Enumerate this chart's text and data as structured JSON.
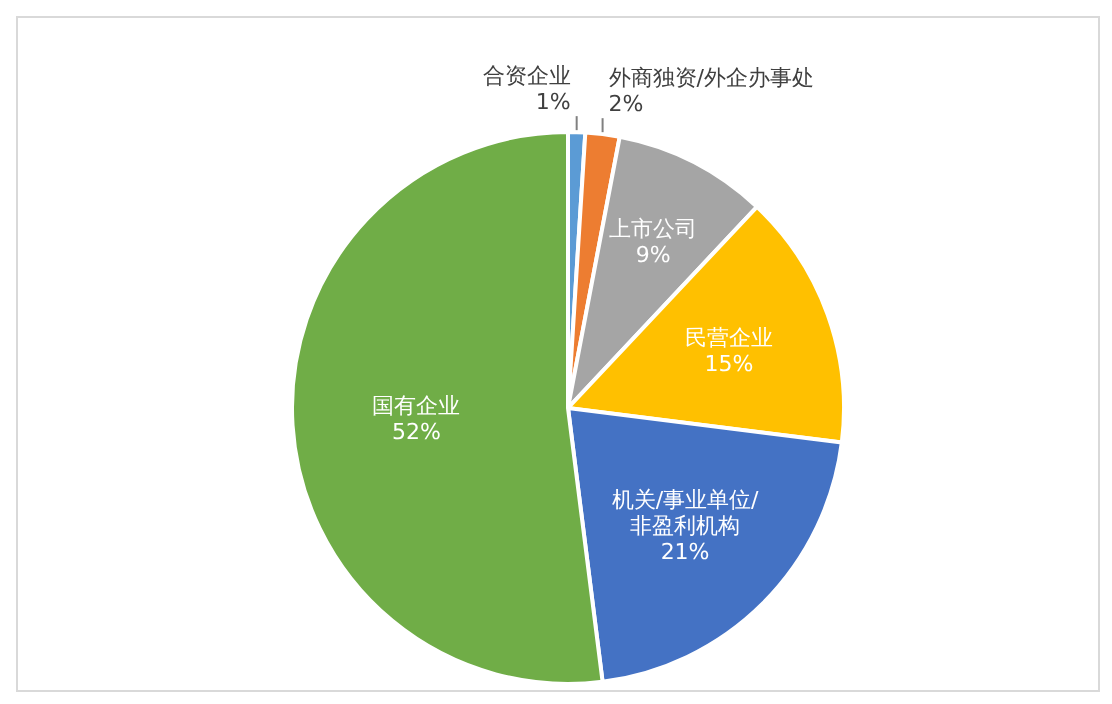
{
  "chart_data": {
    "type": "pie",
    "categories": [
      "合资企业",
      "外商独资/外企办事处",
      "上市公司",
      "民营企业",
      "机关/事业单位/非盈利机构",
      "国有企业"
    ],
    "values": [
      1,
      2,
      9,
      15,
      21,
      52
    ],
    "colors": [
      "#5b9bd5",
      "#ed7d31",
      "#a5a5a5",
      "#ffc000",
      "#4472c4",
      "#70ad47"
    ],
    "value_labels": [
      "1%",
      "2%",
      "9%",
      "15%",
      "21%",
      "52%"
    ]
  }
}
